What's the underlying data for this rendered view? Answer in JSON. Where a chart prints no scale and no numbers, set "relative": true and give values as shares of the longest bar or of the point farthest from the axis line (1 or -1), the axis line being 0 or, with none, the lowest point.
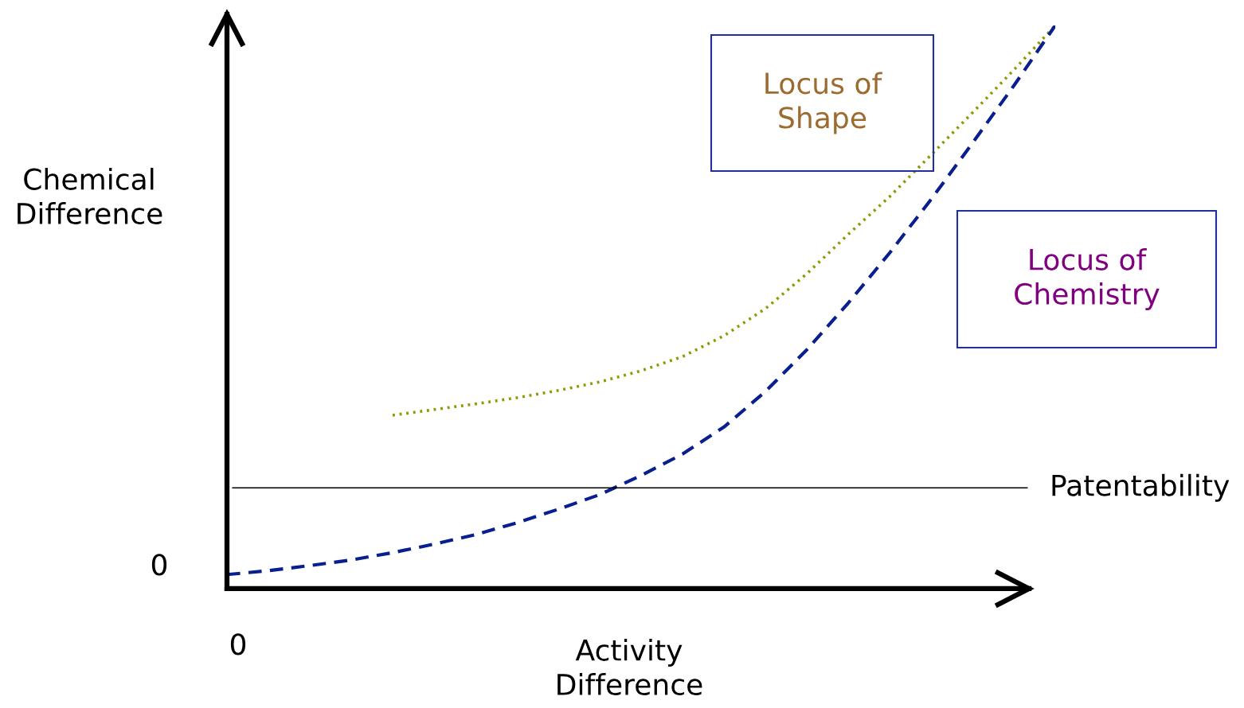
{
  "chart_data": {
    "type": "line",
    "relative": true,
    "xlabel": "Activity\nDifference",
    "ylabel": "Chemical\nDifference",
    "categories": [
      null,
      null,
      null,
      null,
      null,
      null,
      null,
      null,
      null,
      null,
      null,
      null,
      null,
      null,
      null,
      null,
      null,
      null,
      null,
      null,
      null
    ],
    "series": [
      {
        "color": "#8f9a00",
        "line_style": "dotted",
        "values": [
          null,
          null,
          null,
          null,
          0.308,
          0.318,
          0.328,
          0.339,
          0.352,
          0.367,
          0.387,
          0.412,
          0.449,
          0.497,
          0.559,
          0.629,
          0.696,
          0.77,
          0.845,
          0.921,
          1
        ]
      },
      {
        "color": "#0a1f8f",
        "line_style": "dashed",
        "values": [
          0.025,
          0.032,
          0.041,
          0.051,
          0.064,
          0.079,
          0.096,
          0.117,
          0.141,
          0.167,
          0.201,
          0.239,
          0.287,
          0.35,
          0.424,
          0.507,
          0.596,
          0.691,
          0.791,
          0.893,
          1
        ]
      }
    ],
    "ref_lines": [
      {
        "axis": "y",
        "value": 0.179,
        "label": "Patentability",
        "color": "#000000"
      }
    ],
    "annotations": [
      "Locus of Shape",
      "Locus of Chemistry",
      "0",
      "0"
    ],
    "grid": false,
    "marker": "none"
  }
}
